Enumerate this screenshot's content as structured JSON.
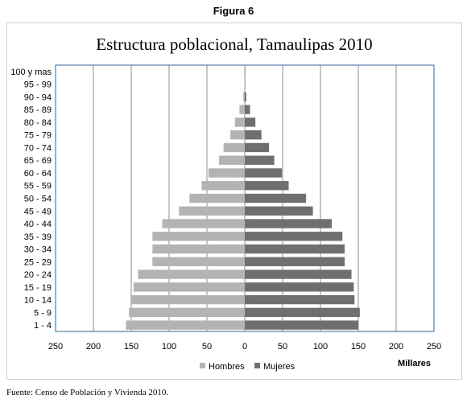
{
  "figure_label": "Figura 6",
  "source": "Fuente: Censo de Población y Vivienda 2010.",
  "chart_data": {
    "type": "bar",
    "orientation": "horizontal",
    "subtype": "population-pyramid",
    "title": "Estructura poblacional, Tamaulipas 2010",
    "xlabel": "Millares",
    "ylabel": "",
    "xlim": [
      -250,
      250
    ],
    "xticks": [
      -250,
      -200,
      -150,
      -100,
      -50,
      0,
      50,
      100,
      150,
      200,
      250
    ],
    "xtick_labels": [
      "250",
      "200",
      "150",
      "100",
      "50",
      "0",
      "50",
      "100",
      "150",
      "200",
      "250"
    ],
    "grid": "vertical",
    "legend_position": "bottom",
    "categories": [
      "1 - 4",
      "5 - 9",
      "10 - 14",
      "15 - 19",
      "20 - 24",
      "25 - 29",
      "30 - 34",
      "35 - 39",
      "40 - 44",
      "45 - 49",
      "50 - 54",
      "55 - 59",
      "60 - 64",
      "65 - 69",
      "70 - 74",
      "75 - 79",
      "80 - 84",
      "85 - 89",
      "90 - 94",
      "95 - 99",
      "100 y mas"
    ],
    "series": [
      {
        "name": "Hombres",
        "color": "#b3b3b3",
        "side": "left",
        "values": [
          157,
          153,
          151,
          147,
          141,
          122,
          122,
          122,
          109,
          87,
          73,
          57,
          48,
          34,
          28,
          19,
          13,
          7,
          2,
          0.5,
          0.2
        ]
      },
      {
        "name": "Mujeres",
        "color": "#6f6f6f",
        "side": "right",
        "values": [
          150,
          152,
          145,
          144,
          141,
          132,
          132,
          129,
          115,
          90,
          81,
          58,
          49,
          39,
          32,
          22,
          14,
          7,
          2,
          0.5,
          0.2
        ]
      }
    ]
  }
}
